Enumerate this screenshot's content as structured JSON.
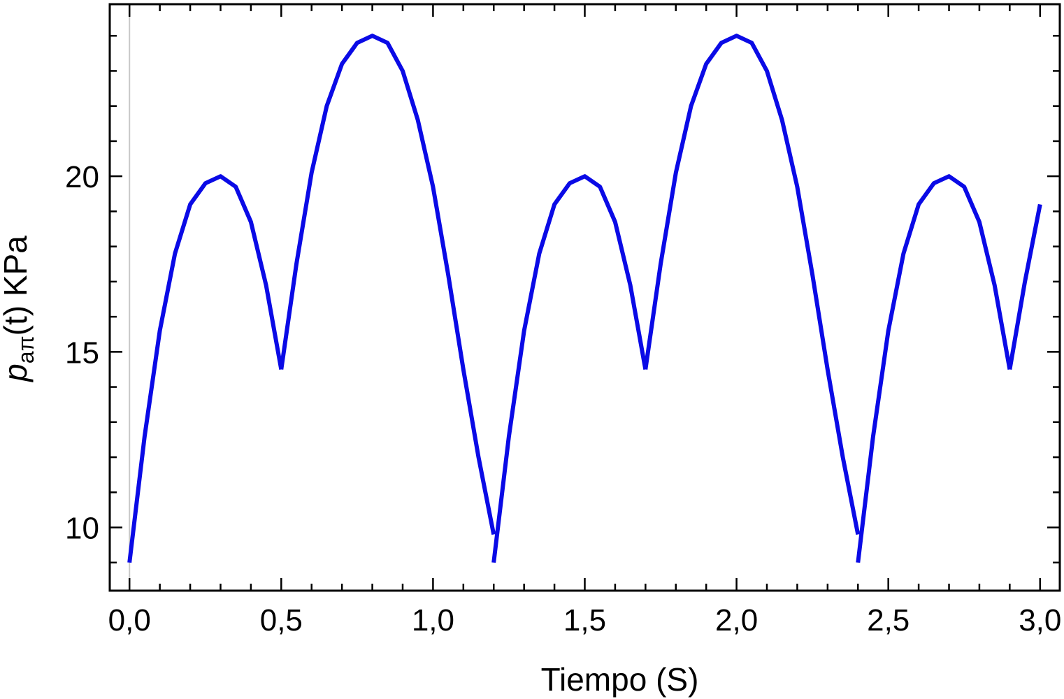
{
  "chart_data": {
    "type": "line",
    "title": "",
    "xlabel": "Tiempo  (S)",
    "ylabel": {
      "main": "p",
      "subscript": "aπ",
      "suffix": "(t)  KPa"
    },
    "xlim": [
      -0.065,
      3.065
    ],
    "ylim": [
      8.2,
      24.9
    ],
    "x_ticks": [
      {
        "value": 0.0,
        "label": "0,0"
      },
      {
        "value": 0.5,
        "label": "0,5"
      },
      {
        "value": 1.0,
        "label": "1,0"
      },
      {
        "value": 1.5,
        "label": "1,5"
      },
      {
        "value": 2.0,
        "label": "2,0"
      },
      {
        "value": 2.5,
        "label": "2,5"
      },
      {
        "value": 3.0,
        "label": "3,0"
      }
    ],
    "y_ticks": [
      {
        "value": 10,
        "label": "10"
      },
      {
        "value": 15,
        "label": "15"
      },
      {
        "value": 20,
        "label": "20"
      }
    ],
    "grid": false,
    "line_color": "#0a0ae6",
    "series": [
      {
        "segments": [
          {
            "x": [
              0.0,
              0.05,
              0.1,
              0.15,
              0.2,
              0.25,
              0.3,
              0.35,
              0.4,
              0.45,
              0.5
            ],
            "y": [
              9.0,
              12.6,
              15.6,
              17.8,
              19.2,
              19.8,
              20.0,
              19.7,
              18.7,
              16.9,
              14.5
            ]
          },
          {
            "x": [
              0.5,
              0.55,
              0.6,
              0.65,
              0.7,
              0.75,
              0.8,
              0.85,
              0.9,
              0.95,
              1.0,
              1.05,
              1.1,
              1.15,
              1.2
            ],
            "y": [
              14.5,
              17.5,
              20.1,
              22.0,
              23.2,
              23.8,
              24.0,
              23.8,
              23.0,
              21.6,
              19.7,
              17.2,
              14.5,
              12.0,
              9.8
            ]
          },
          {
            "x": [
              1.2,
              1.25,
              1.3,
              1.35,
              1.4,
              1.45,
              1.5,
              1.55,
              1.6,
              1.65,
              1.7
            ],
            "y": [
              9.0,
              12.6,
              15.6,
              17.8,
              19.2,
              19.8,
              20.0,
              19.7,
              18.7,
              16.9,
              14.5
            ]
          },
          {
            "x": [
              1.7,
              1.75,
              1.8,
              1.85,
              1.9,
              1.95,
              2.0,
              2.05,
              2.1,
              2.15,
              2.2,
              2.25,
              2.3,
              2.35,
              2.4
            ],
            "y": [
              14.5,
              17.5,
              20.1,
              22.0,
              23.2,
              23.8,
              24.0,
              23.8,
              23.0,
              21.6,
              19.7,
              17.2,
              14.5,
              12.0,
              9.8
            ]
          },
          {
            "x": [
              2.4,
              2.45,
              2.5,
              2.55,
              2.6,
              2.65,
              2.7,
              2.75,
              2.8,
              2.85,
              2.9
            ],
            "y": [
              9.0,
              12.6,
              15.6,
              17.8,
              19.2,
              19.8,
              20.0,
              19.7,
              18.7,
              16.9,
              14.5
            ]
          },
          {
            "x": [
              2.9,
              2.95,
              3.0
            ],
            "y": [
              14.5,
              17.0,
              19.2
            ]
          }
        ]
      }
    ]
  }
}
